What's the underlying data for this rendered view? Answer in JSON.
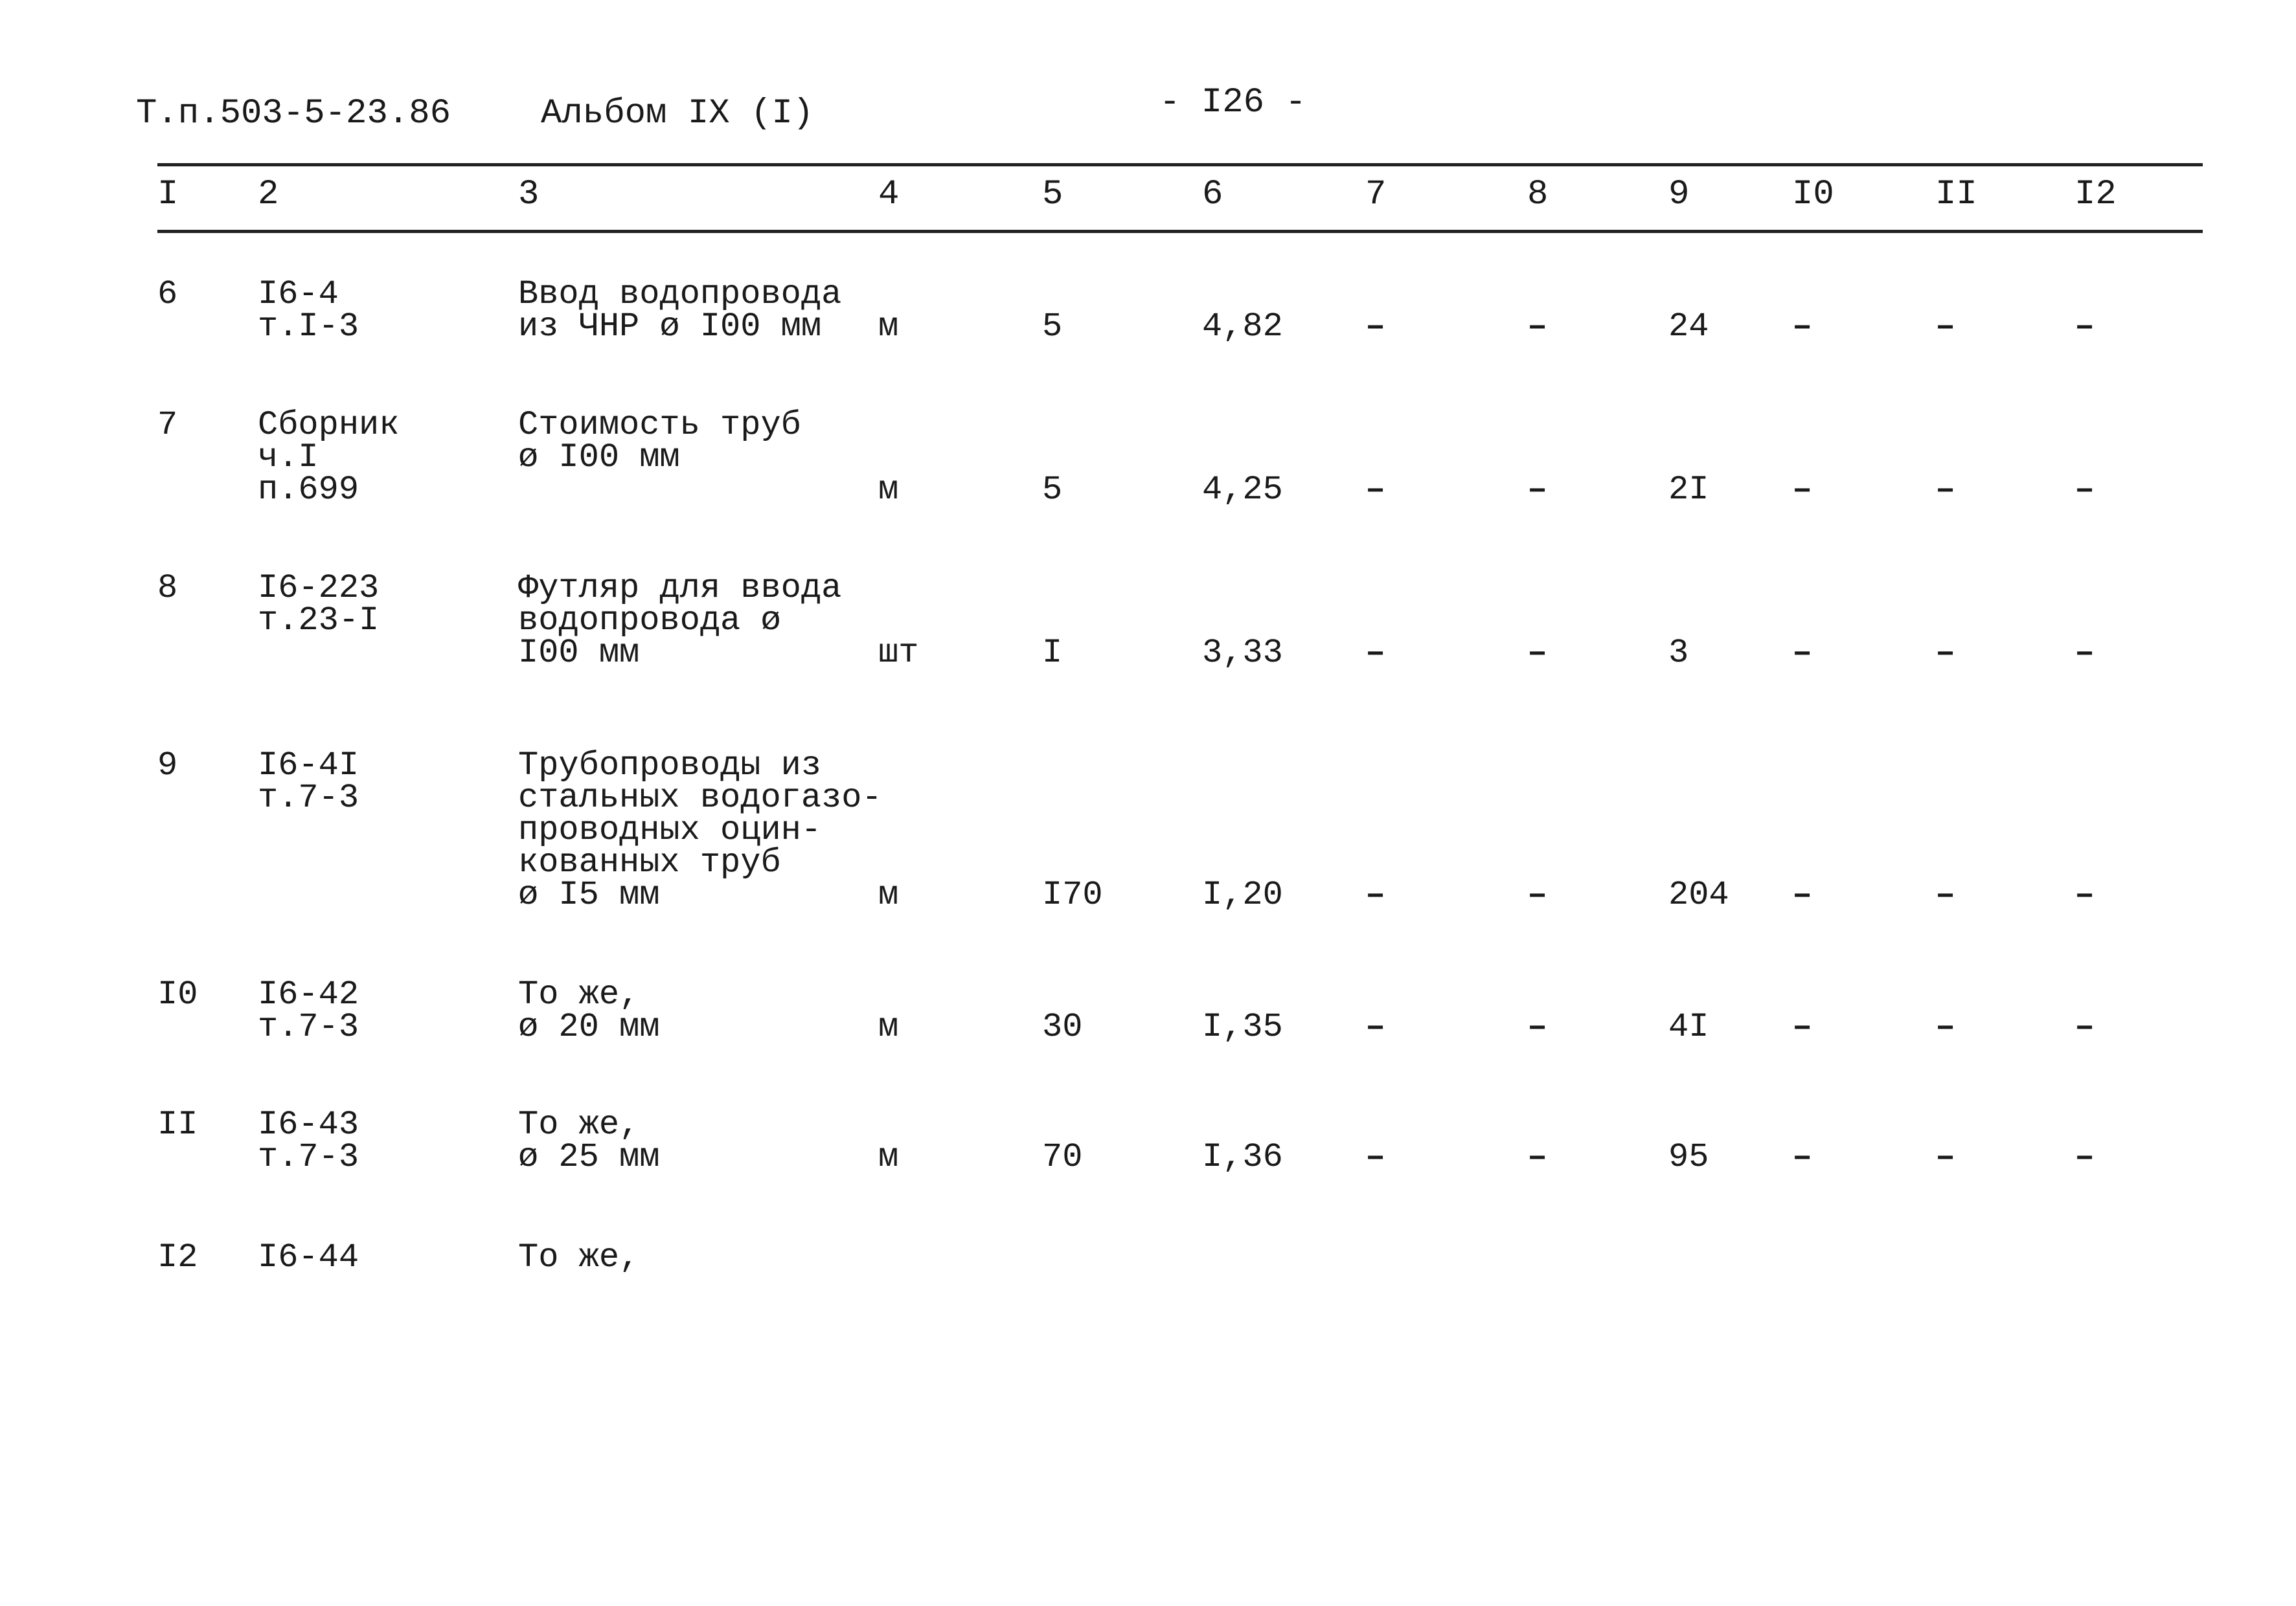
{
  "header": {
    "doc_code": "Т.п.503-5-23.86",
    "album": "Альбом IX (I)",
    "page_number": "- I26 -"
  },
  "columns": [
    "I",
    "2",
    "3",
    "4",
    "5",
    "6",
    "7",
    "8",
    "9",
    "I0",
    "II",
    "I2"
  ],
  "rows": [
    {
      "no": "6",
      "ref": "I6-4\nт.I-3",
      "desc": "Ввод водопровода\nиз ЧНР ø I00 мм",
      "unit": "м",
      "qty": "5",
      "price": "4,82",
      "c7": "–",
      "c8": "–",
      "c9": "24",
      "c10": "–",
      "c11": "–",
      "c12": "–"
    },
    {
      "no": "7",
      "ref": "Сборник\nч.I\nп.699",
      "desc": "Стоимость труб\nø I00 мм",
      "unit": "м",
      "qty": "5",
      "price": "4,25",
      "c7": "–",
      "c8": "–",
      "c9": "2I",
      "c10": "–",
      "c11": "–",
      "c12": "–"
    },
    {
      "no": "8",
      "ref": "I6-223\nт.23-I",
      "desc": "Футляр для ввода\nводопровода ø\nI00 мм",
      "unit": "шт",
      "qty": "I",
      "price": "3,33",
      "c7": "–",
      "c8": "–",
      "c9": "3",
      "c10": "–",
      "c11": "–",
      "c12": "–"
    },
    {
      "no": "9",
      "ref": "I6-4I\nт.7-3",
      "desc": "Трубопроводы из\nстальных водогазо-\nпроводных оцин-\nкованных труб\nø I5 мм",
      "unit": "м",
      "qty": "I70",
      "price": "I,20",
      "c7": "–",
      "c8": "–",
      "c9": "204",
      "c10": "–",
      "c11": "–",
      "c12": "–"
    },
    {
      "no": "I0",
      "ref": "I6-42\nт.7-3",
      "desc": "То же,\nø 20 мм",
      "unit": "м",
      "qty": "30",
      "price": "I,35",
      "c7": "–",
      "c8": "–",
      "c9": "4I",
      "c10": "–",
      "c11": "–",
      "c12": "–"
    },
    {
      "no": "II",
      "ref": "I6-43\nт.7-3",
      "desc": "То же,\nø 25 мм",
      "unit": "м",
      "qty": "70",
      "price": "I,36",
      "c7": "–",
      "c8": "–",
      "c9": "95",
      "c10": "–",
      "c11": "–",
      "c12": "–"
    },
    {
      "no": "I2",
      "ref": "I6-44",
      "desc": "То же,"
    }
  ]
}
